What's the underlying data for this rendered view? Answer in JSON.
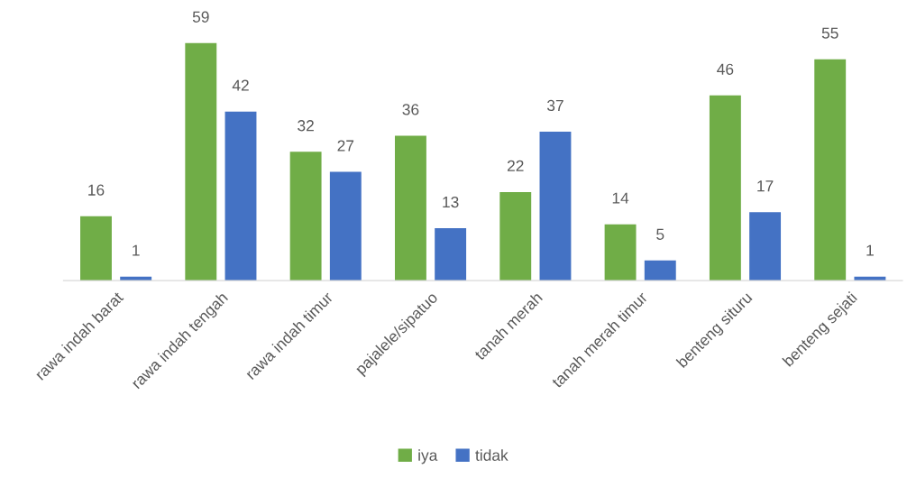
{
  "chart_data": {
    "type": "bar",
    "categories": [
      "rawa indah barat",
      "rawa indah tengah",
      "rawa indah timur",
      "pajalele/sipatuo",
      "tanah merah",
      "tanah merah timur",
      "benteng situru",
      "benteng sejati"
    ],
    "series": [
      {
        "name": "iya",
        "color": "#70ad47",
        "values": [
          16,
          59,
          32,
          36,
          22,
          14,
          46,
          55
        ]
      },
      {
        "name": "tidak",
        "color": "#4472c4",
        "values": [
          1,
          42,
          27,
          13,
          37,
          5,
          17,
          1
        ]
      }
    ],
    "data_labels": true,
    "grid": false,
    "legend": "bottom"
  }
}
